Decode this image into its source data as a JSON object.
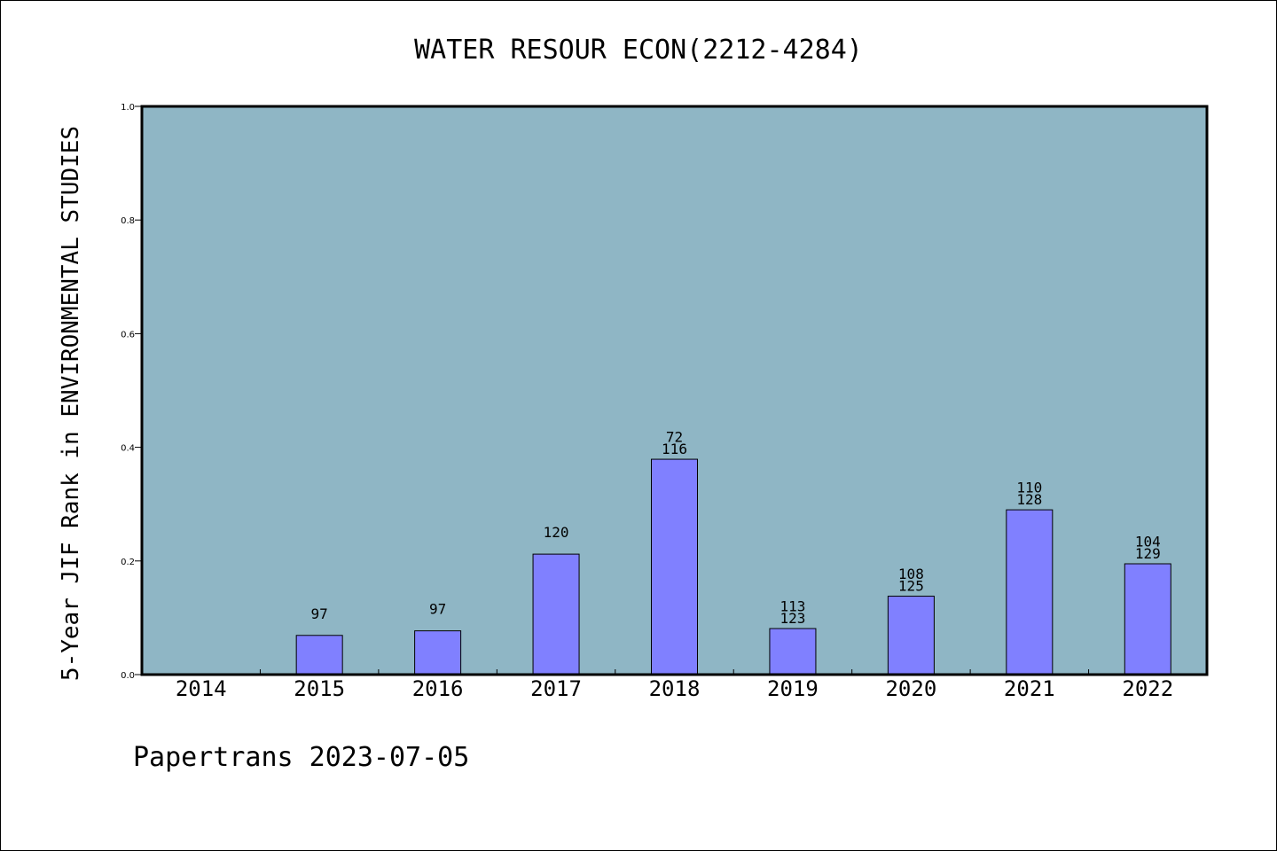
{
  "chart_data": {
    "type": "bar",
    "title": "WATER RESOUR ECON(2212-4284)",
    "ylabel": "5-Year JIF Rank in ENVIRONMENTAL STUDIES",
    "xlabel": "",
    "ylim": [
      0,
      1.0
    ],
    "yticks": [
      "0.0",
      "0.2",
      "0.4",
      "0.6",
      "0.8",
      "1.0"
    ],
    "categories": [
      "2014",
      "2015",
      "2016",
      "2017",
      "2018",
      "2019",
      "2020",
      "2021",
      "2022"
    ],
    "values": [
      null,
      0.069,
      0.077,
      0.212,
      0.379,
      0.081,
      0.138,
      0.29,
      0.195
    ],
    "bar_labels": [
      [],
      [
        "97"
      ],
      [
        "97"
      ],
      [
        "120"
      ],
      [
        "72",
        "116"
      ],
      [
        "113",
        "123"
      ],
      [
        "108",
        "125"
      ],
      [
        "110",
        "128"
      ],
      [
        "104",
        "129"
      ]
    ],
    "grid": false,
    "plot_background": "#8fb6c5",
    "bar_color": "#8080ff"
  },
  "footer": {
    "text": "Papertrans 2023-07-05"
  }
}
